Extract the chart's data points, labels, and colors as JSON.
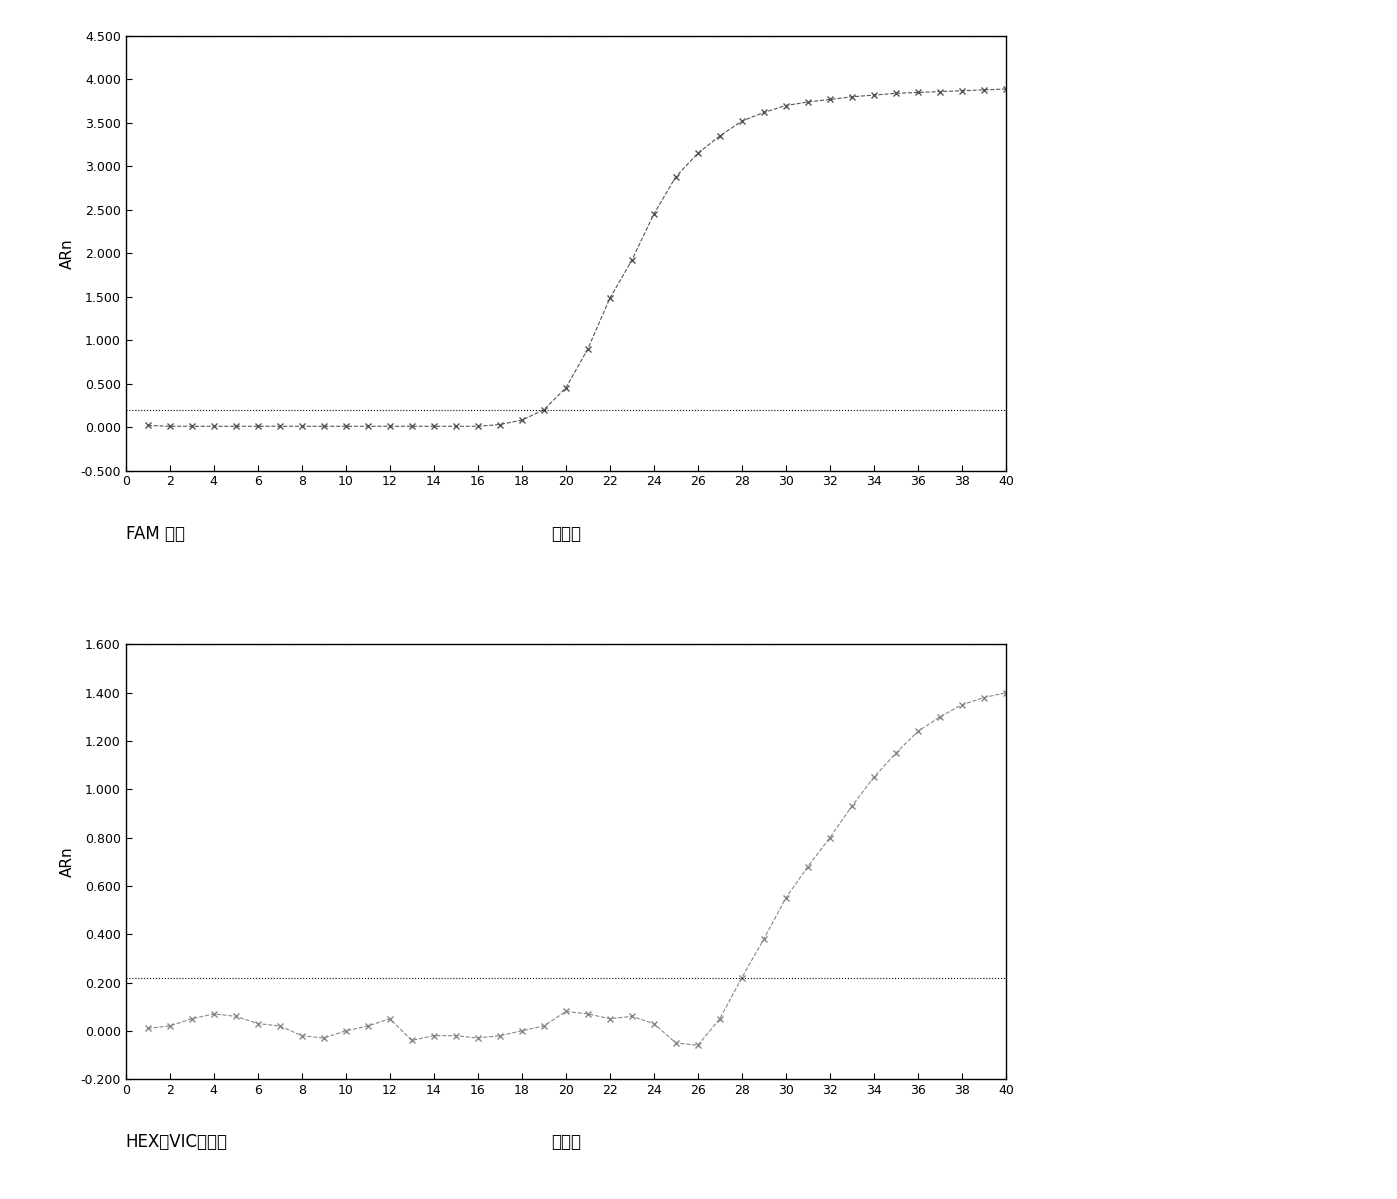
{
  "chart1": {
    "ylabel": "ARn",
    "xlabel": "循环数",
    "channel_label": "FAM 通道",
    "ylim": [
      -0.5,
      4.5
    ],
    "yticks": [
      -0.5,
      0.0,
      0.5,
      1.0,
      1.5,
      2.0,
      2.5,
      3.0,
      3.5,
      4.0,
      4.5
    ],
    "xlim": [
      0,
      40
    ],
    "xticks": [
      0,
      2,
      4,
      6,
      8,
      10,
      12,
      14,
      16,
      18,
      20,
      22,
      24,
      26,
      28,
      30,
      32,
      34,
      36,
      38,
      40
    ],
    "threshold": 0.2,
    "top_hline": 4.5,
    "data_x": [
      1,
      2,
      3,
      4,
      5,
      6,
      7,
      8,
      9,
      10,
      11,
      12,
      13,
      14,
      15,
      16,
      17,
      18,
      19,
      20,
      21,
      22,
      23,
      24,
      25,
      26,
      27,
      28,
      29,
      30,
      31,
      32,
      33,
      34,
      35,
      36,
      37,
      38,
      39,
      40
    ],
    "data_y": [
      0.02,
      0.01,
      0.01,
      0.01,
      0.01,
      0.01,
      0.01,
      0.01,
      0.01,
      0.01,
      0.01,
      0.01,
      0.01,
      0.01,
      0.01,
      0.01,
      0.03,
      0.08,
      0.2,
      0.45,
      0.9,
      1.48,
      1.92,
      2.45,
      2.88,
      3.15,
      3.35,
      3.52,
      3.62,
      3.7,
      3.74,
      3.77,
      3.8,
      3.82,
      3.84,
      3.85,
      3.86,
      3.87,
      3.88,
      3.89
    ],
    "line_color": "#555555",
    "marker": "x",
    "marker_size": 5,
    "line_style": "--",
    "line_width": 0.8
  },
  "chart2": {
    "ylabel": "ARn",
    "xlabel": "循环数",
    "channel_label": "HEX（VIC）通道",
    "ylim": [
      -0.2,
      1.6
    ],
    "yticks": [
      -0.2,
      0.0,
      0.2,
      0.4,
      0.6,
      0.8,
      1.0,
      1.2,
      1.4,
      1.6
    ],
    "xlim": [
      0,
      40
    ],
    "xticks": [
      0,
      2,
      4,
      6,
      8,
      10,
      12,
      14,
      16,
      18,
      20,
      22,
      24,
      26,
      28,
      30,
      32,
      34,
      36,
      38,
      40
    ],
    "threshold": 0.22,
    "top_hline": 1.6,
    "data_x": [
      1,
      2,
      3,
      4,
      5,
      6,
      7,
      8,
      9,
      10,
      11,
      12,
      13,
      14,
      15,
      16,
      17,
      18,
      19,
      20,
      21,
      22,
      23,
      24,
      25,
      26,
      27,
      28,
      29,
      30,
      31,
      32,
      33,
      34,
      35,
      36,
      37,
      38,
      39,
      40
    ],
    "data_y": [
      0.01,
      0.02,
      0.05,
      0.07,
      0.06,
      0.03,
      0.02,
      -0.02,
      -0.03,
      0.0,
      0.02,
      0.05,
      -0.04,
      -0.02,
      -0.02,
      -0.03,
      -0.02,
      0.0,
      0.02,
      0.08,
      0.07,
      0.05,
      0.06,
      0.03,
      -0.05,
      -0.06,
      0.05,
      0.22,
      0.38,
      0.55,
      0.68,
      0.8,
      0.93,
      1.05,
      1.15,
      1.24,
      1.3,
      1.35,
      1.38,
      1.4
    ],
    "line_color": "#888888",
    "marker": "x",
    "marker_size": 5,
    "line_style": "--",
    "line_width": 0.8
  },
  "background_color": "#ffffff",
  "figure_facecolor": "#ffffff",
  "label_fontsize": 11,
  "tick_fontsize": 9,
  "channel_fontsize": 12,
  "xlabel_fontsize": 12
}
